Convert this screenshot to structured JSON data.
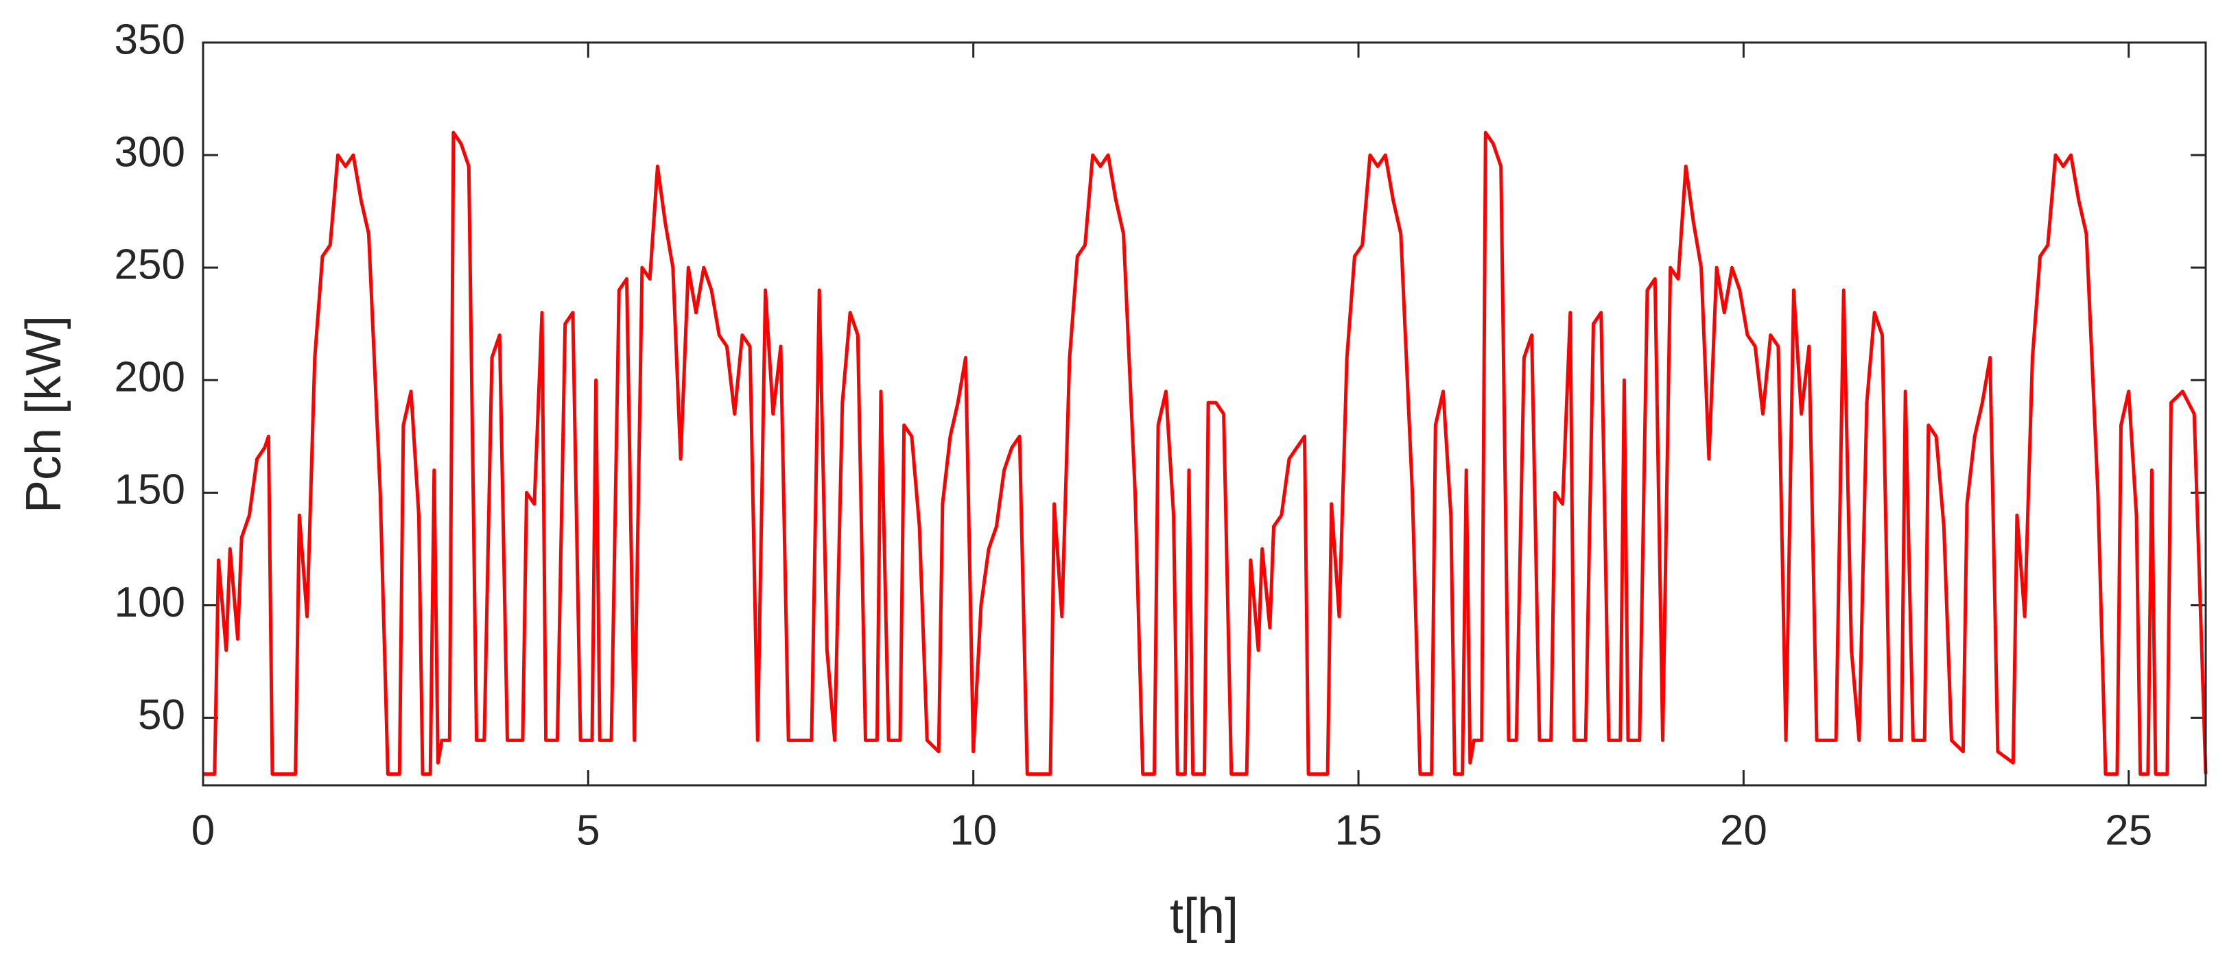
{
  "chart_data": {
    "type": "line",
    "xlabel": "t[h]",
    "ylabel": "Pch [kW]",
    "xlim": [
      0,
      26
    ],
    "xticks": [
      0,
      5,
      10,
      15,
      20,
      25
    ],
    "ylim": [
      20,
      350
    ],
    "yticks": [
      50,
      100,
      150,
      200,
      250,
      300,
      350
    ],
    "grid": false,
    "x": [
      0,
      0.15,
      0.2,
      0.3,
      0.35,
      0.45,
      0.5,
      0.6,
      0.7,
      0.8,
      0.85,
      0.9,
      1.2,
      1.25,
      1.35,
      1.45,
      1.55,
      1.65,
      1.75,
      1.85,
      1.95,
      2.05,
      2.15,
      2.3,
      2.4,
      2.55,
      2.6,
      2.7,
      2.8,
      2.85,
      2.95,
      3.0,
      3.05,
      3.1,
      3.2,
      3.25,
      3.35,
      3.45,
      3.55,
      3.65,
      3.75,
      3.85,
      3.95,
      4.15,
      4.2,
      4.3,
      4.4,
      4.45,
      4.6,
      4.7,
      4.8,
      4.9,
      5.05,
      5.1,
      5.15,
      5.3,
      5.4,
      5.5,
      5.6,
      5.7,
      5.8,
      5.9,
      6.0,
      6.1,
      6.2,
      6.3,
      6.4,
      6.5,
      6.6,
      6.7,
      6.8,
      6.9,
      7.0,
      7.1,
      7.2,
      7.3,
      7.4,
      7.5,
      7.6,
      7.9,
      8.0,
      8.1,
      8.2,
      8.3,
      8.4,
      8.5,
      8.6,
      8.75,
      8.8,
      8.9,
      9.05,
      9.1,
      9.2,
      9.3,
      9.4,
      9.55,
      9.6,
      9.7,
      9.8,
      9.9,
      10.0,
      10.1,
      10.2,
      10.3,
      10.4,
      10.5,
      10.6,
      10.7,
      11.0,
      11.05,
      11.15,
      11.25,
      11.35,
      11.45,
      11.55,
      11.65,
      11.75,
      11.85,
      11.95,
      12.1,
      12.2,
      12.35,
      12.4,
      12.5,
      12.6,
      12.65,
      12.75,
      12.8,
      12.85,
      13.0,
      13.05,
      13.15,
      13.25,
      13.35,
      13.55,
      13.6,
      13.7,
      13.75,
      13.85,
      13.9,
      14.0,
      14.1,
      14.2,
      14.3,
      14.35,
      14.6,
      14.65,
      14.75,
      14.85,
      14.95,
      15.05,
      15.15,
      15.25,
      15.35,
      15.45,
      15.55,
      15.7,
      15.8,
      15.95,
      16.0,
      16.1,
      16.2,
      16.25,
      16.35,
      16.4,
      16.45,
      16.5,
      16.6,
      16.65,
      16.75,
      16.85,
      16.95,
      17.05,
      17.15,
      17.25,
      17.35,
      17.5,
      17.55,
      17.65,
      17.75,
      17.8,
      17.95,
      18.05,
      18.15,
      18.25,
      18.4,
      18.45,
      18.5,
      18.65,
      18.75,
      18.85,
      18.95,
      19.05,
      19.15,
      19.25,
      19.35,
      19.45,
      19.55,
      19.65,
      19.75,
      19.85,
      19.95,
      20.05,
      20.15,
      20.25,
      20.35,
      20.45,
      20.55,
      20.65,
      20.75,
      20.85,
      20.95,
      21.2,
      21.3,
      21.4,
      21.5,
      21.6,
      21.7,
      21.8,
      21.9,
      22.05,
      22.1,
      22.2,
      22.35,
      22.4,
      22.5,
      22.6,
      22.7,
      22.85,
      22.9,
      23.0,
      23.1,
      23.2,
      23.3,
      23.5,
      23.55,
      23.65,
      23.75,
      23.85,
      23.95,
      24.05,
      24.15,
      24.25,
      24.35,
      24.45,
      24.6,
      24.7,
      24.85,
      24.9,
      25.0,
      25.1,
      25.15,
      25.25,
      25.3,
      25.35,
      25.5,
      25.55,
      25.7,
      25.85,
      26.0
    ],
    "series": [
      {
        "color": "#ff0000",
        "values": [
          25,
          25,
          120,
          80,
          125,
          85,
          130,
          140,
          165,
          170,
          175,
          25,
          25,
          140,
          95,
          210,
          255,
          260,
          300,
          295,
          300,
          280,
          265,
          150,
          25,
          25,
          180,
          195,
          140,
          25,
          25,
          160,
          30,
          40,
          40,
          310,
          305,
          295,
          40,
          40,
          210,
          220,
          40,
          40,
          150,
          145,
          230,
          40,
          40,
          225,
          230,
          40,
          40,
          200,
          40,
          40,
          240,
          245,
          40,
          250,
          245,
          295,
          270,
          250,
          165,
          250,
          230,
          250,
          240,
          220,
          215,
          185,
          220,
          215,
          40,
          240,
          185,
          215,
          40,
          40,
          240,
          80,
          40,
          190,
          230,
          220,
          40,
          40,
          195,
          40,
          40,
          180,
          175,
          135,
          40,
          35,
          145,
          175,
          190,
          210,
          35,
          100,
          125,
          135,
          160,
          170,
          175,
          25,
          25,
          145,
          95,
          210,
          255,
          260,
          300,
          295,
          300,
          280,
          265,
          150,
          25,
          25,
          180,
          195,
          140,
          25,
          25,
          160,
          25,
          25,
          190,
          190,
          185,
          25,
          25,
          120,
          80,
          125,
          90,
          135,
          140,
          165,
          170,
          175,
          25,
          25,
          145,
          95,
          210,
          255,
          260,
          300,
          295,
          300,
          280,
          265,
          150,
          25,
          25,
          180,
          195,
          140,
          25,
          25,
          160,
          30,
          40,
          40,
          310,
          305,
          295,
          40,
          40,
          210,
          220,
          40,
          40,
          150,
          145,
          230,
          40,
          40,
          225,
          230,
          40,
          40,
          200,
          40,
          40,
          240,
          245,
          40,
          250,
          245,
          295,
          270,
          250,
          165,
          250,
          230,
          250,
          240,
          220,
          215,
          185,
          220,
          215,
          40,
          240,
          185,
          215,
          40,
          40,
          240,
          80,
          40,
          190,
          230,
          220,
          40,
          40,
          195,
          40,
          40,
          180,
          175,
          135,
          40,
          35,
          145,
          175,
          190,
          210,
          35,
          30,
          140,
          95,
          210,
          255,
          260,
          300,
          295,
          300,
          280,
          265,
          150,
          25,
          25,
          180,
          195,
          140,
          25,
          25,
          160,
          25,
          25,
          190,
          195,
          185,
          25
        ]
      }
    ]
  }
}
